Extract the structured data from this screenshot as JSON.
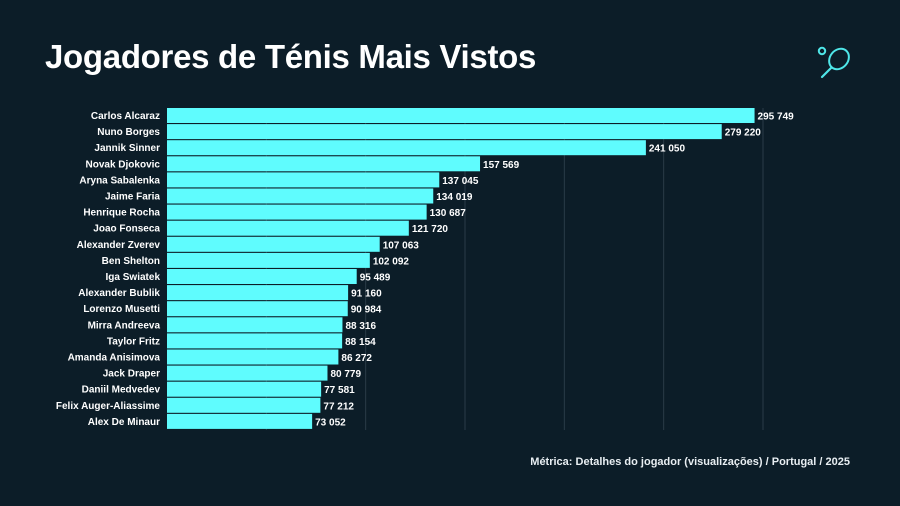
{
  "title": "Jogadores de Ténis Mais Vistos",
  "logo_icon": "tennis-racket-icon",
  "footer": "Métrica: Detalhes do jogador (visualizações) / Portugal / 2025",
  "colors": {
    "background": "#0c1d28",
    "bar": "#5ffcfe",
    "gridline": "#2a3c47",
    "logo": "#4fe6e8"
  },
  "chart_data": {
    "type": "bar",
    "orientation": "horizontal",
    "title": "Jogadores de Ténis Mais Vistos",
    "xlim": [
      0,
      300000
    ],
    "grid": true,
    "gridlines": [
      50000,
      100000,
      150000,
      200000,
      250000,
      300000
    ],
    "categories": [
      "Carlos Alcaraz",
      "Nuno Borges",
      "Jannik Sinner",
      "Novak Djokovic",
      "Aryna Sabalenka",
      "Jaime Faria",
      "Henrique Rocha",
      "Joao Fonseca",
      "Alexander Zverev",
      "Ben Shelton",
      "Iga Swiatek",
      "Alexander Bublik",
      "Lorenzo Musetti",
      "Mirra Andreeva",
      "Taylor Fritz",
      "Amanda Anisimova",
      "Jack Draper",
      "Daniil Medvedev",
      "Felix Auger-Aliassime",
      "Alex De Minaur"
    ],
    "values": [
      295749,
      279220,
      241050,
      157569,
      137045,
      134019,
      130687,
      121720,
      107063,
      102092,
      95489,
      91160,
      90984,
      88316,
      88154,
      86272,
      80779,
      77581,
      77212,
      73052
    ],
    "value_labels": [
      "295 749",
      "279 220",
      "241 050",
      "157 569",
      "137 045",
      "134 019",
      "130 687",
      "121 720",
      "107 063",
      "102 092",
      "95 489",
      "91 160",
      "90 984",
      "88 316",
      "88 154",
      "86 272",
      "80 779",
      "77 581",
      "77 212",
      "73 052"
    ]
  }
}
